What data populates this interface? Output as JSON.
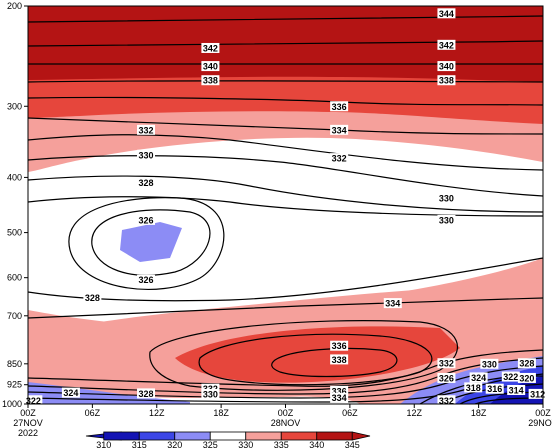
{
  "chart_data": {
    "type": "contour",
    "title": "",
    "xlabel": "",
    "ylabel": "",
    "x_ticks": [
      {
        "label": "00Z",
        "sub1": "27NOV",
        "sub2": "2022"
      },
      {
        "label": "06Z"
      },
      {
        "label": "12Z"
      },
      {
        "label": "18Z"
      },
      {
        "label": "00Z",
        "sub1": "28NOV"
      },
      {
        "label": "06Z"
      },
      {
        "label": "12Z"
      },
      {
        "label": "18Z"
      },
      {
        "label": "00Z",
        "sub1": "29NOV"
      }
    ],
    "time_range_hours": [
      0,
      48
    ],
    "y_axis": {
      "scale": "log",
      "reversed": true,
      "range_hPa": [
        1000,
        200
      ]
    },
    "y_ticks": [
      200,
      300,
      400,
      500,
      600,
      700,
      850,
      925,
      1000
    ],
    "colorbar": {
      "levels": [
        310,
        315,
        320,
        325,
        330,
        335,
        340,
        345
      ],
      "colors": [
        "#1414b4",
        "#3c46e6",
        "#8c8cf5",
        "#ffffff",
        "#f5a09b",
        "#e6463c",
        "#b41414"
      ]
    },
    "contour_labels": [
      {
        "value": 344,
        "t": 39,
        "p": 206
      },
      {
        "value": 342,
        "t": 17,
        "p": 237
      },
      {
        "value": 342,
        "t": 39,
        "p": 234
      },
      {
        "value": 340,
        "t": 17,
        "p": 255
      },
      {
        "value": 340,
        "t": 39,
        "p": 255
      },
      {
        "value": 338,
        "t": 17,
        "p": 270
      },
      {
        "value": 338,
        "t": 39,
        "p": 270
      },
      {
        "value": 336,
        "t": 29,
        "p": 300
      },
      {
        "value": 334,
        "t": 29,
        "p": 330
      },
      {
        "value": 332,
        "t": 11,
        "p": 330
      },
      {
        "value": 332,
        "t": 29,
        "p": 370
      },
      {
        "value": 330,
        "t": 11,
        "p": 365
      },
      {
        "value": 330,
        "t": 39,
        "p": 435
      },
      {
        "value": 330,
        "t": 39,
        "p": 475
      },
      {
        "value": 328,
        "t": 11,
        "p": 408
      },
      {
        "value": 328,
        "t": 6,
        "p": 650
      },
      {
        "value": 326,
        "t": 11,
        "p": 475
      },
      {
        "value": 326,
        "t": 11,
        "p": 605
      },
      {
        "value": 334,
        "t": 34,
        "p": 665
      },
      {
        "value": 336,
        "t": 29,
        "p": 790
      },
      {
        "value": 338,
        "t": 29,
        "p": 835
      },
      {
        "value": 332,
        "t": 39,
        "p": 848
      },
      {
        "value": 330,
        "t": 43,
        "p": 850
      },
      {
        "value": 328,
        "t": 46.5,
        "p": 848
      },
      {
        "value": 326,
        "t": 39,
        "p": 900
      },
      {
        "value": 324,
        "t": 42,
        "p": 898
      },
      {
        "value": 322,
        "t": 45,
        "p": 895
      },
      {
        "value": 320,
        "t": 46.5,
        "p": 900
      },
      {
        "value": 318,
        "t": 41.5,
        "p": 935
      },
      {
        "value": 316,
        "t": 43.5,
        "p": 940
      },
      {
        "value": 314,
        "t": 45.5,
        "p": 945
      },
      {
        "value": 312,
        "t": 47.5,
        "p": 960
      },
      {
        "value": 324,
        "t": 4,
        "p": 955
      },
      {
        "value": 322,
        "t": 0.5,
        "p": 985
      },
      {
        "value": 328,
        "t": 11,
        "p": 958
      },
      {
        "value": 332,
        "t": 17,
        "p": 940
      },
      {
        "value": 330,
        "t": 17,
        "p": 960
      },
      {
        "value": 336,
        "t": 29,
        "p": 948
      },
      {
        "value": 334,
        "t": 29,
        "p": 975
      },
      {
        "value": 332,
        "t": 39,
        "p": 985
      }
    ]
  }
}
